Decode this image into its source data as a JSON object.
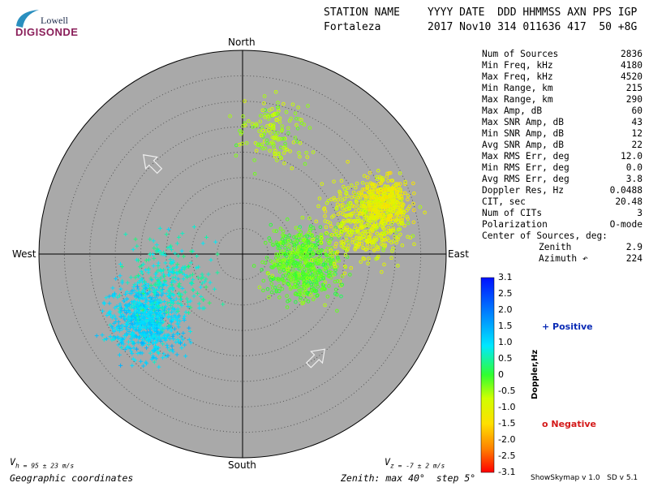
{
  "logo": {
    "line1": "Lowell",
    "line2": "DIGISONDE"
  },
  "header": {
    "station_label": "STATION NAME",
    "date_label": "YYYY DATE  DDD HHMMSS AXN PPS IGP",
    "station_value": "Fortaleza",
    "date_value": "2017 Nov10 314 011636 417  50 +8G"
  },
  "stats": [
    {
      "label": "Num of Sources",
      "value": "2836"
    },
    {
      "label": "Min Freq, kHz",
      "value": "4180"
    },
    {
      "label": "Max Freq, kHz",
      "value": "4520"
    },
    {
      "label": "Min Range, km",
      "value": "215"
    },
    {
      "label": "Max Range, km",
      "value": "290"
    },
    {
      "label": "Max Amp, dB",
      "value": "60"
    },
    {
      "label": "Max SNR Amp, dB",
      "value": "43"
    },
    {
      "label": "Min SNR Amp, dB",
      "value": "12"
    },
    {
      "label": "Avg SNR Amp, dB",
      "value": "22"
    },
    {
      "label": "Max RMS Err, deg",
      "value": "12.0"
    },
    {
      "label": "Min RMS Err, deg",
      "value": "0.0"
    },
    {
      "label": "Avg RMS Err, deg",
      "value": "3.8"
    },
    {
      "label": "Doppler Res, Hz",
      "value": "0.0488"
    },
    {
      "label": "CIT, sec",
      "value": "20.48"
    },
    {
      "label": "Num of CITs",
      "value": "3"
    },
    {
      "label": "Polarization",
      "value": "O-mode"
    }
  ],
  "center": {
    "title": "Center of Sources, deg:",
    "zenith_label": "Zenith",
    "zenith_value": "2.9",
    "azimuth_label": "Azimuth",
    "azimuth_value": "224"
  },
  "compass": {
    "north": "North",
    "south": "South",
    "east": "East",
    "west": "West"
  },
  "footer": {
    "vh": "h = 95 ± 23 m/s",
    "vh_prefix": "V",
    "vz": "z = -7 ± 2 m/s",
    "vz_prefix": "V",
    "coords": "Geographic coordinates",
    "zenith": "Zenith: max 40°  step 5°",
    "version": "ShowSkymap v 1.0   SD v 5.1"
  },
  "legend": {
    "title": "Doppler,Hz",
    "ticks": [
      "3.1",
      "2.5",
      "2.0",
      "1.5",
      "1.0",
      "0.5",
      "0",
      "-0.5",
      "-1.0",
      "-1.5",
      "-2.0",
      "-2.5",
      "-3.1"
    ],
    "positive": "+ Positive",
    "negative": "o Negative"
  },
  "chart_data": {
    "type": "scatter",
    "title": "",
    "xlabel": "",
    "ylabel": "",
    "zenith_max_deg": 40,
    "zenith_step_deg": 5,
    "clusters": [
      {
        "marker": "plus",
        "az_deg": 235,
        "zenith_deg": 23,
        "spread_deg": 6,
        "doppler_hz": 1.1,
        "count": 700
      },
      {
        "marker": "plus",
        "az_deg": 250,
        "zenith_deg": 15,
        "spread_deg": 7,
        "doppler_hz": 0.7,
        "count": 250
      },
      {
        "marker": "circle",
        "az_deg": 100,
        "zenith_deg": 12,
        "spread_deg": 6,
        "doppler_hz": -0.2,
        "count": 600
      },
      {
        "marker": "circle",
        "az_deg": 75,
        "zenith_deg": 25,
        "spread_deg": 7,
        "doppler_hz": -0.9,
        "count": 500
      },
      {
        "marker": "circle",
        "az_deg": 70,
        "zenith_deg": 30,
        "spread_deg": 4,
        "doppler_hz": -1.2,
        "count": 300
      },
      {
        "marker": "circle",
        "az_deg": 15,
        "zenith_deg": 25,
        "spread_deg": 6,
        "doppler_hz": -0.6,
        "count": 150
      }
    ],
    "arrows": [
      {
        "az_deg": 315,
        "zenith_deg": 25,
        "direction_deg": 315
      },
      {
        "az_deg": 145,
        "zenith_deg": 25,
        "direction_deg": 45
      }
    ]
  }
}
